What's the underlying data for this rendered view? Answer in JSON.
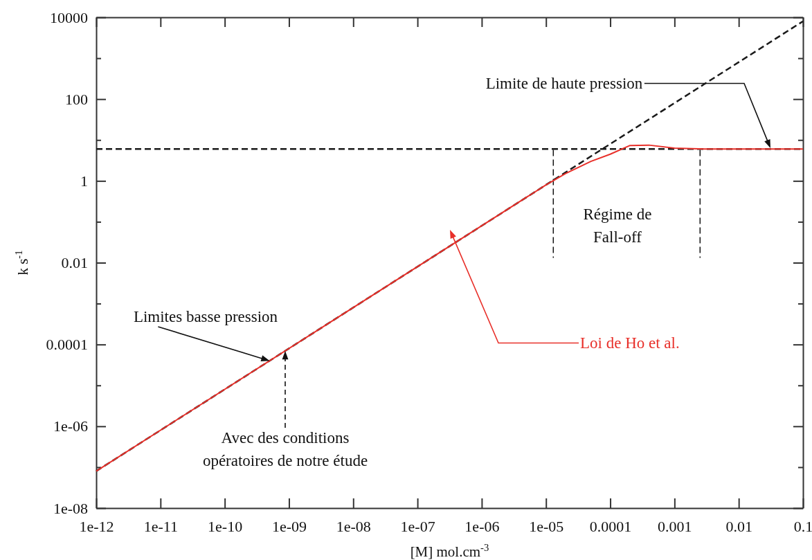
{
  "chart_data": {
    "type": "line",
    "xlabel": "[M] mol.cm$^{-3}$",
    "ylabel": "k s$^{-1}$",
    "log": "xy",
    "xlim": [
      1e-12,
      0.1
    ],
    "ylim": [
      1e-08,
      10000
    ],
    "xticks": [
      {
        "value": 1e-12,
        "label": "1e-12"
      },
      {
        "value": 1e-11,
        "label": "1e-11"
      },
      {
        "value": 1e-10,
        "label": "1e-10"
      },
      {
        "value": 1e-09,
        "label": "1e-09"
      },
      {
        "value": 1e-08,
        "label": "1e-08"
      },
      {
        "value": 1e-07,
        "label": "1e-07"
      },
      {
        "value": 1e-06,
        "label": "1e-06"
      },
      {
        "value": 1e-05,
        "label": "1e-05"
      },
      0.0001,
      0.001,
      0.01,
      0.1
    ],
    "yticks": [
      {
        "value": 1e-08,
        "label": "1e-08"
      },
      {
        "value": 1e-07,
        "label": null
      },
      {
        "value": 1e-06,
        "label": "1e-06"
      },
      {
        "value": 1e-05,
        "label": null
      },
      0.0001,
      {
        "value": 0.001,
        "label": null
      },
      0.01,
      {
        "value": 0.1,
        "label": null
      },
      1,
      {
        "value": 10,
        "label": null
      },
      100,
      {
        "value": 1000,
        "label": null
      },
      10000
    ],
    "series": [
      {
        "color": "#e8302a",
        "line_style": "solid",
        "x": [
          1e-12,
          1e-05,
          2e-05,
          5e-05,
          0.0001,
          0.0002,
          0.0004,
          0.001,
          0.003,
          0.1
        ],
        "values": [
          8e-08,
          0.8,
          1.5,
          3,
          4.5,
          7.3,
          7.5,
          6.3,
          6,
          6
        ]
      },
      {
        "color": "#1a1a1a",
        "line_style": "dashed",
        "x": [
          1e-12,
          0.1
        ],
        "values": [
          8e-08,
          8000
        ]
      },
      {
        "color": "#1a1a1a",
        "line_style": "dashed",
        "x": [
          1e-12,
          0.1
        ],
        "values": [
          6,
          6
        ]
      }
    ],
    "ref_lines": [
      {
        "axis": "x",
        "value": 1.3e-05,
        "line_style": "dashed"
      },
      {
        "axis": "x",
        "value": 0.0025,
        "line_style": "dashed"
      }
    ],
    "annotations": [
      "Limite de haute pression",
      {
        "text": "Limites basse pression",
        "x": 5e-10,
        "y": 4e-05
      },
      "Avec des conditions opératoires de notre étude",
      "Loi de Ho et al.",
      "Régime de Fall-off"
    ],
    "grid": false,
    "marker": "none"
  }
}
